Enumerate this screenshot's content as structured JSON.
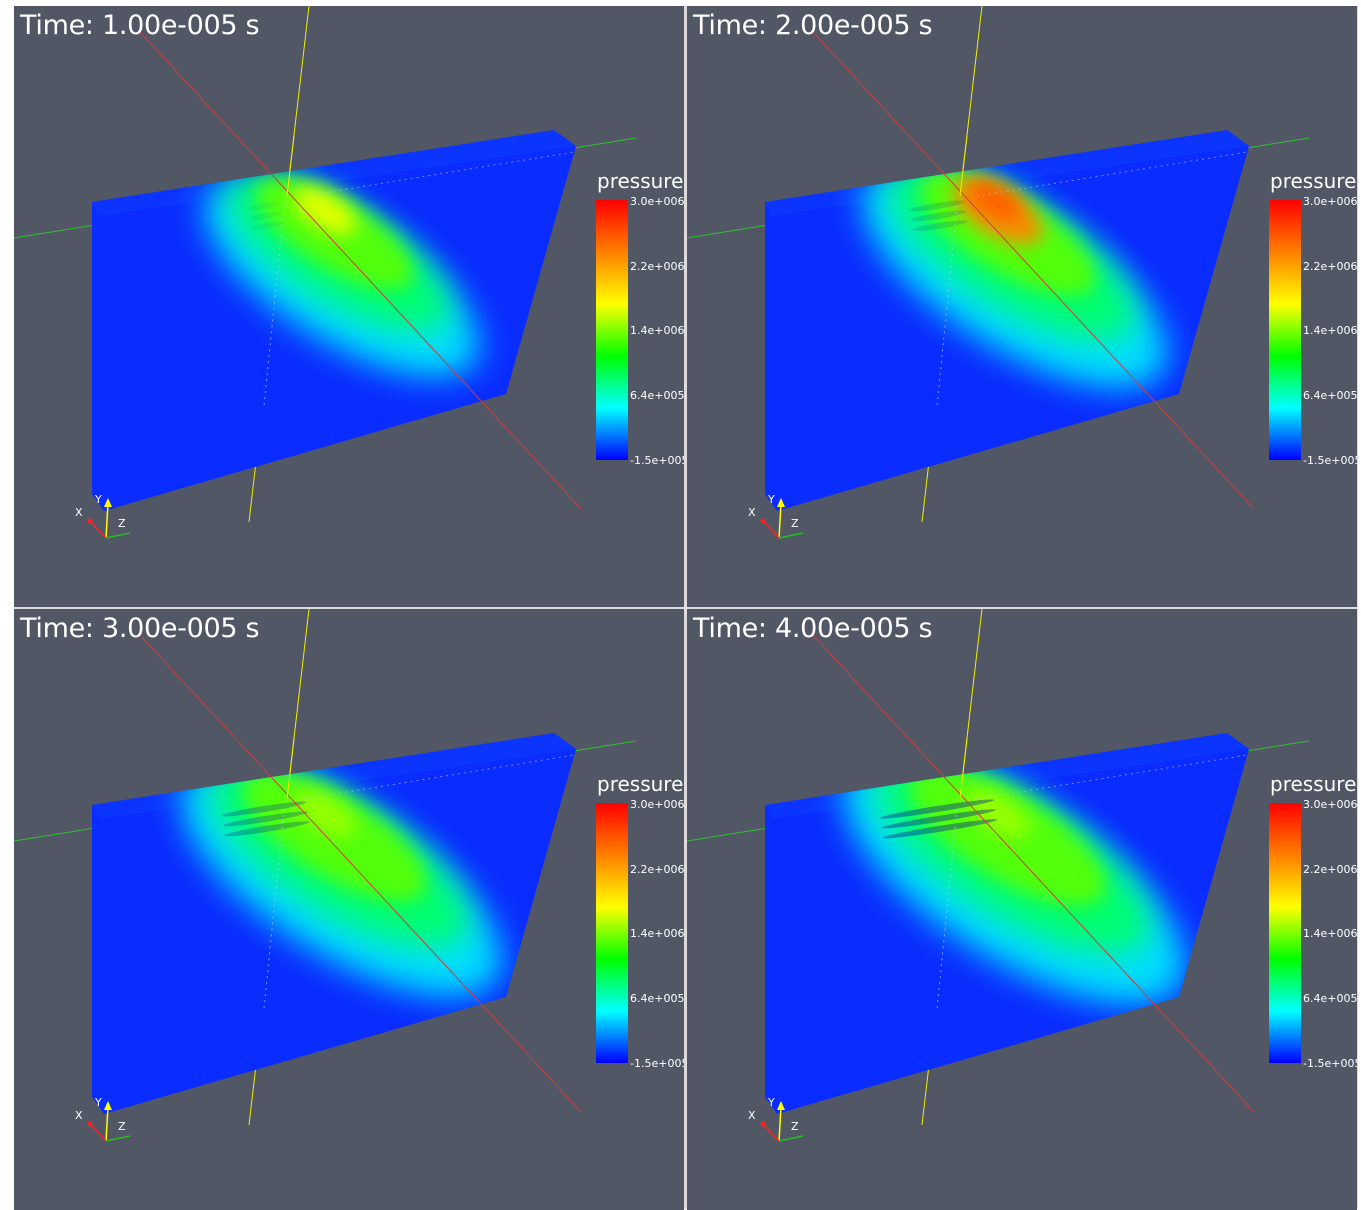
{
  "views": [
    {
      "time_label": "Time: 1.00e-005 s",
      "time_value": "1.00e-005",
      "peak_level": 0.72,
      "spread": 0.9,
      "ripple": 0.1
    },
    {
      "time_label": "Time: 2.00e-005 s",
      "time_value": "2.00e-005",
      "peak_level": 0.92,
      "spread": 1.0,
      "ripple": 0.3
    },
    {
      "time_label": "Time: 3.00e-005 s",
      "time_value": "3.00e-005",
      "peak_level": 0.6,
      "spread": 1.05,
      "ripple": 0.55
    },
    {
      "time_label": "Time: 4.00e-005 s",
      "time_value": "4.00e-005",
      "peak_level": 0.58,
      "spread": 1.12,
      "ripple": 0.8
    }
  ],
  "legend": {
    "title": "pressure",
    "ticks": [
      "3.0e+006",
      "2.2e+006",
      "1.4e+006",
      "6.4e+005",
      "-1.5e+005"
    ],
    "range": [
      -150000,
      3000000
    ],
    "colormap": [
      "#ff0000",
      "#ff7f00",
      "#ffff00",
      "#00ff00",
      "#00ffff",
      "#0000ff"
    ]
  },
  "orientation_axes": {
    "x_label": "X",
    "y_label": "Y",
    "z_label": "Z",
    "x_color": "#ff2020",
    "y_color": "#ffff00",
    "z_color": "#20c020"
  },
  "colors": {
    "background": "#525766",
    "body": "#0a2cff",
    "axis_red": "#d23b3b",
    "axis_yellow": "#f0f000",
    "axis_green": "#30c030"
  }
}
